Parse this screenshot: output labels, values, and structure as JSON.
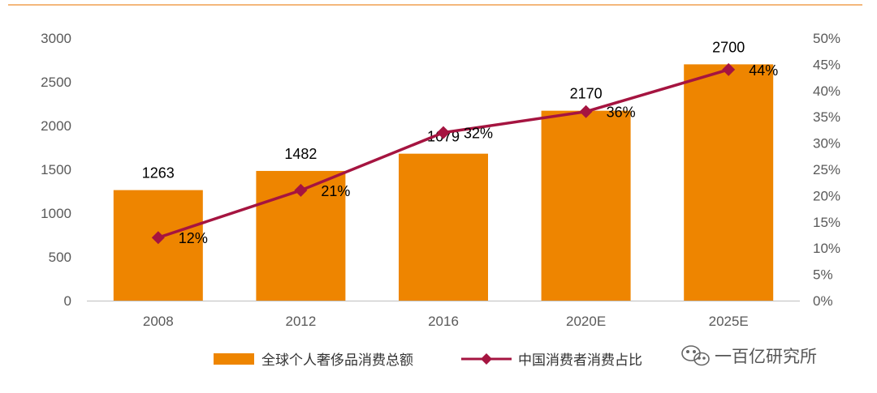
{
  "chart_data": {
    "type": "bar",
    "categories": [
      "2008",
      "2012",
      "2016",
      "2020E",
      "2025E"
    ],
    "series": [
      {
        "name": "全球个人奢侈品消费总额",
        "type": "bar",
        "axis": "left",
        "values": [
          1263,
          1482,
          1679,
          2170,
          2700
        ],
        "labels": [
          "1263",
          "1482",
          "1679",
          "2170",
          "2700"
        ]
      },
      {
        "name": "中国消费者消费占比",
        "type": "line",
        "axis": "right",
        "values": [
          12,
          21,
          32,
          36,
          44
        ],
        "labels": [
          "12%",
          "21%",
          "32%",
          "36%",
          "44%"
        ]
      }
    ],
    "y_left": {
      "min": 0,
      "max": 3000,
      "ticks": [
        "0",
        "500",
        "1000",
        "1500",
        "2000",
        "2500",
        "3000"
      ]
    },
    "y_right": {
      "min": 0,
      "max": 50,
      "ticks": [
        "0%",
        "5%",
        "10%",
        "15%",
        "20%",
        "25%",
        "30%",
        "35%",
        "40%",
        "45%",
        "50%"
      ]
    },
    "legend_position": "bottom",
    "grid": false
  },
  "colors": {
    "bar": "#EE8500",
    "line": "#A51440",
    "top_rule": "#F0A050",
    "axis": "#BFBFBF"
  },
  "watermark": {
    "text": "一百亿研究所",
    "icon": "wechat-icon"
  }
}
